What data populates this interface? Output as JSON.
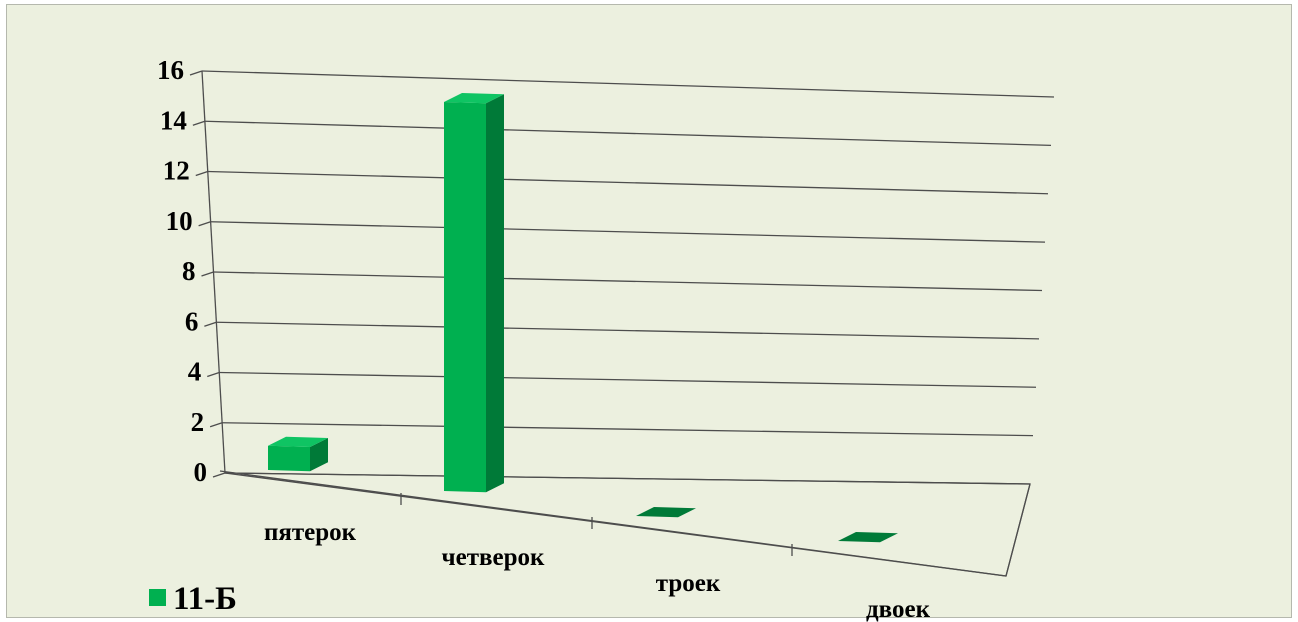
{
  "chart_data": {
    "type": "bar",
    "subtype": "3d-column",
    "categories": [
      "пятерок",
      "четверок",
      "троек",
      "двоек"
    ],
    "series": [
      {
        "name": "11-Б",
        "values": [
          1,
          16,
          0,
          0
        ],
        "color": "#00b050"
      }
    ],
    "ylim": [
      0,
      16
    ],
    "yticks": [
      "0",
      "2",
      "4",
      "6",
      "8",
      "10",
      "12",
      "14",
      "16"
    ],
    "title": "",
    "xlabel": "",
    "ylabel": "",
    "grid": true,
    "legend_position": "bottom-left"
  },
  "colors": {
    "background": "#ecf0df",
    "bar_front": "#00b050",
    "bar_side": "#007a38",
    "bar_top": "#0fc463",
    "gridline": "#4d4d4d"
  }
}
